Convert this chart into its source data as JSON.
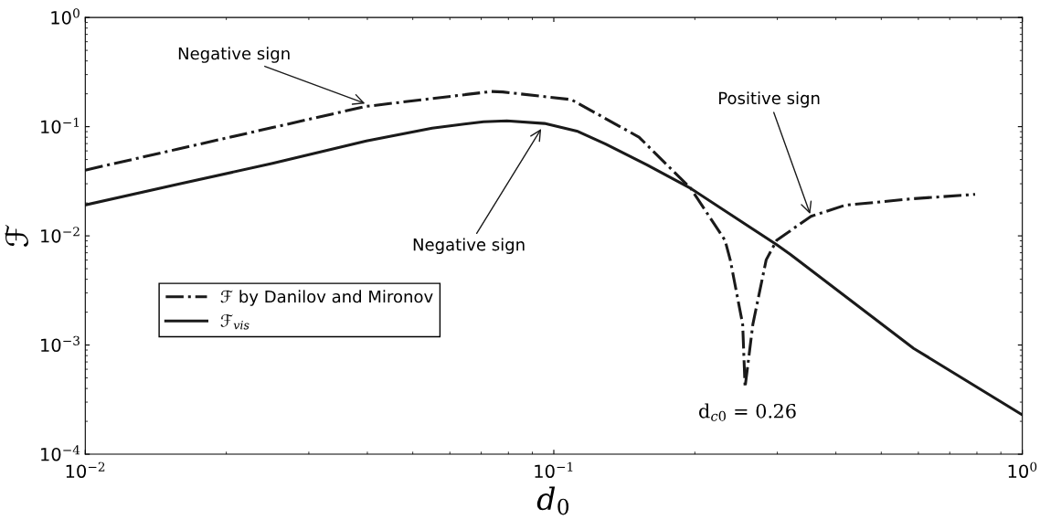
{
  "chart_data": {
    "type": "line",
    "xlabel": "d$_{0}$",
    "ylabel": "ℱ",
    "log": "xy",
    "xlim": [
      0.01,
      1
    ],
    "ylim": [
      0.0001,
      1
    ],
    "xticks": [
      {
        "value": 0.01,
        "label": "10$^{−2}$"
      },
      {
        "value": 0.1,
        "label": "10$^{−1}$"
      },
      {
        "value": 1,
        "label": "10$^{0}$"
      }
    ],
    "yticks": [
      {
        "value": 0.0001,
        "label": "10$^{−4}$"
      },
      {
        "value": 0.001,
        "label": "10$^{−3}$"
      },
      {
        "value": 0.01,
        "label": "10$^{−2}$"
      },
      {
        "value": 0.1,
        "label": "10$^{−1}$"
      },
      {
        "value": 1,
        "label": "10$^{0}$"
      }
    ],
    "grid": false,
    "legend": "left",
    "marker": "none",
    "series": [
      {
        "name": "ℱ by Danilov and Mironov",
        "color": "#1a1a1a",
        "line_style": "dashdot",
        "x": [
          0.01,
          0.0158,
          0.0251,
          0.0396,
          0.0736,
          0.0778,
          0.109,
          0.152,
          0.196,
          0.232,
          0.238,
          0.253,
          0.256,
          0.266,
          0.284,
          0.299,
          0.354,
          0.419,
          0.586,
          0.793
        ],
        "values": [
          0.04,
          0.0625,
          0.0982,
          0.153,
          0.21,
          0.208,
          0.177,
          0.0802,
          0.0272,
          0.0091,
          0.00603,
          0.00155,
          0.00041,
          0.00155,
          0.00603,
          0.0091,
          0.0151,
          0.0191,
          0.0219,
          0.024
        ]
      },
      {
        "name": "ℱ$_{vis}$",
        "color": "#1a1a1a",
        "line_style": "solid",
        "x": [
          0.01,
          0.0158,
          0.0251,
          0.0398,
          0.055,
          0.0708,
          0.0794,
          0.0955,
          0.112,
          0.129,
          0.158,
          0.196,
          0.299,
          0.32,
          0.586,
          1.0
        ],
        "values": [
          0.0192,
          0.0298,
          0.0461,
          0.0741,
          0.097,
          0.111,
          0.113,
          0.107,
          0.0912,
          0.0693,
          0.0447,
          0.0272,
          0.0083,
          0.00676,
          0.000933,
          0.000229
        ]
      }
    ],
    "annotations": [
      {
        "text": "Negative sign",
        "x": 0.04,
        "y": 0.16
      },
      {
        "text": "Negative sign",
        "x": 0.0946,
        "y": 0.1
      },
      {
        "text": "Positive sign",
        "x": 0.354,
        "y": 0.0151
      },
      {
        "text": "d$_{c0}$ = 0.26",
        "x": 0.256,
        "y": 0.00041
      }
    ]
  }
}
